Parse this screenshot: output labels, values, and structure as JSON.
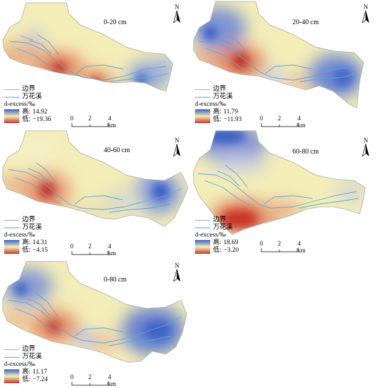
{
  "panels": [
    {
      "depth": "0-20 cm",
      "legend_title": "d-excess/‰",
      "high_label": "高:",
      "high_value": "14.92",
      "low_label": "低:",
      "low_value": "−19.36"
    },
    {
      "depth": "20-40 cm",
      "legend_title": "d-excess/‰",
      "high_label": "高:",
      "high_value": "11.79",
      "low_label": "低:",
      "low_value": "−11.93"
    },
    {
      "depth": "40-60 cm",
      "legend_title": "d-excess/‰",
      "high_label": "高:",
      "high_value": "14.31",
      "low_label": "低:",
      "low_value": "−4.15"
    },
    {
      "depth": "60-80 cm",
      "legend_title": "d-excess/‰",
      "high_label": "高:",
      "high_value": "18.69",
      "low_label": "低:",
      "low_value": "−3.20"
    },
    {
      "depth": "0-80 cm",
      "legend_title": "d-excess/‰",
      "high_label": "高:",
      "high_value": "11.17",
      "low_label": "低:",
      "low_value": "−7.24"
    }
  ],
  "legend": {
    "boundary": "边界",
    "river": "万花溪"
  },
  "north_label": "N",
  "scale": {
    "ticks": [
      "0",
      "2",
      "4 km"
    ]
  },
  "colors": {
    "high": "#3b5fc8",
    "mid": "#f3edb8",
    "low": "#c8352a",
    "boundary": "#aaaaaa",
    "river": "#5aa7d8"
  }
}
